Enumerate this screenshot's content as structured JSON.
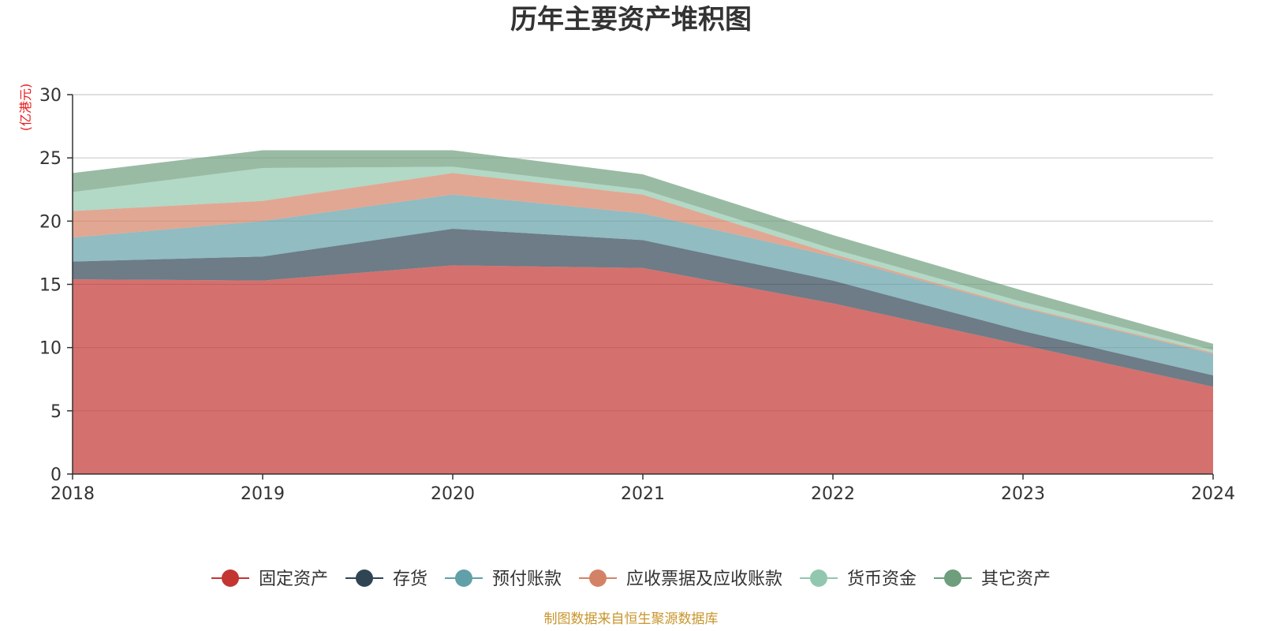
{
  "chart_data": {
    "type": "area",
    "stacked": true,
    "title": "历年主要资产堆积图",
    "unit_label": "(亿港元)",
    "x": [
      "2018",
      "2019",
      "2020",
      "2021",
      "2022",
      "2023",
      "2024"
    ],
    "ylim": [
      0,
      30
    ],
    "y_ticks": [
      "0",
      "5",
      "10",
      "15",
      "20",
      "25",
      "30"
    ],
    "grid": true,
    "legend_position": "bottom",
    "series": [
      {
        "name": "固定资产",
        "color": "#c23531",
        "values": [
          15.4,
          15.3,
          16.5,
          16.3,
          13.5,
          10.2,
          6.9
        ]
      },
      {
        "name": "存货",
        "color": "#2f4554",
        "values": [
          1.4,
          1.9,
          2.9,
          2.2,
          1.8,
          1.1,
          0.9
        ]
      },
      {
        "name": "预付账款",
        "color": "#61a0a8",
        "values": [
          1.9,
          2.8,
          2.7,
          2.1,
          1.9,
          1.8,
          1.7
        ]
      },
      {
        "name": "应收票据及应收账款",
        "color": "#d48265",
        "values": [
          2.1,
          1.6,
          1.7,
          1.5,
          0.2,
          0.1,
          0.1
        ]
      },
      {
        "name": "货币资金",
        "color": "#91c7ae",
        "values": [
          1.5,
          2.6,
          0.5,
          0.4,
          0.4,
          0.4,
          0.2
        ]
      },
      {
        "name": "其它资产",
        "color": "#6e9e7c",
        "values": [
          1.5,
          1.4,
          1.3,
          1.2,
          1.1,
          0.9,
          0.5
        ]
      }
    ]
  },
  "footer": {
    "source": "制图数据来自恒生聚源数据库"
  }
}
